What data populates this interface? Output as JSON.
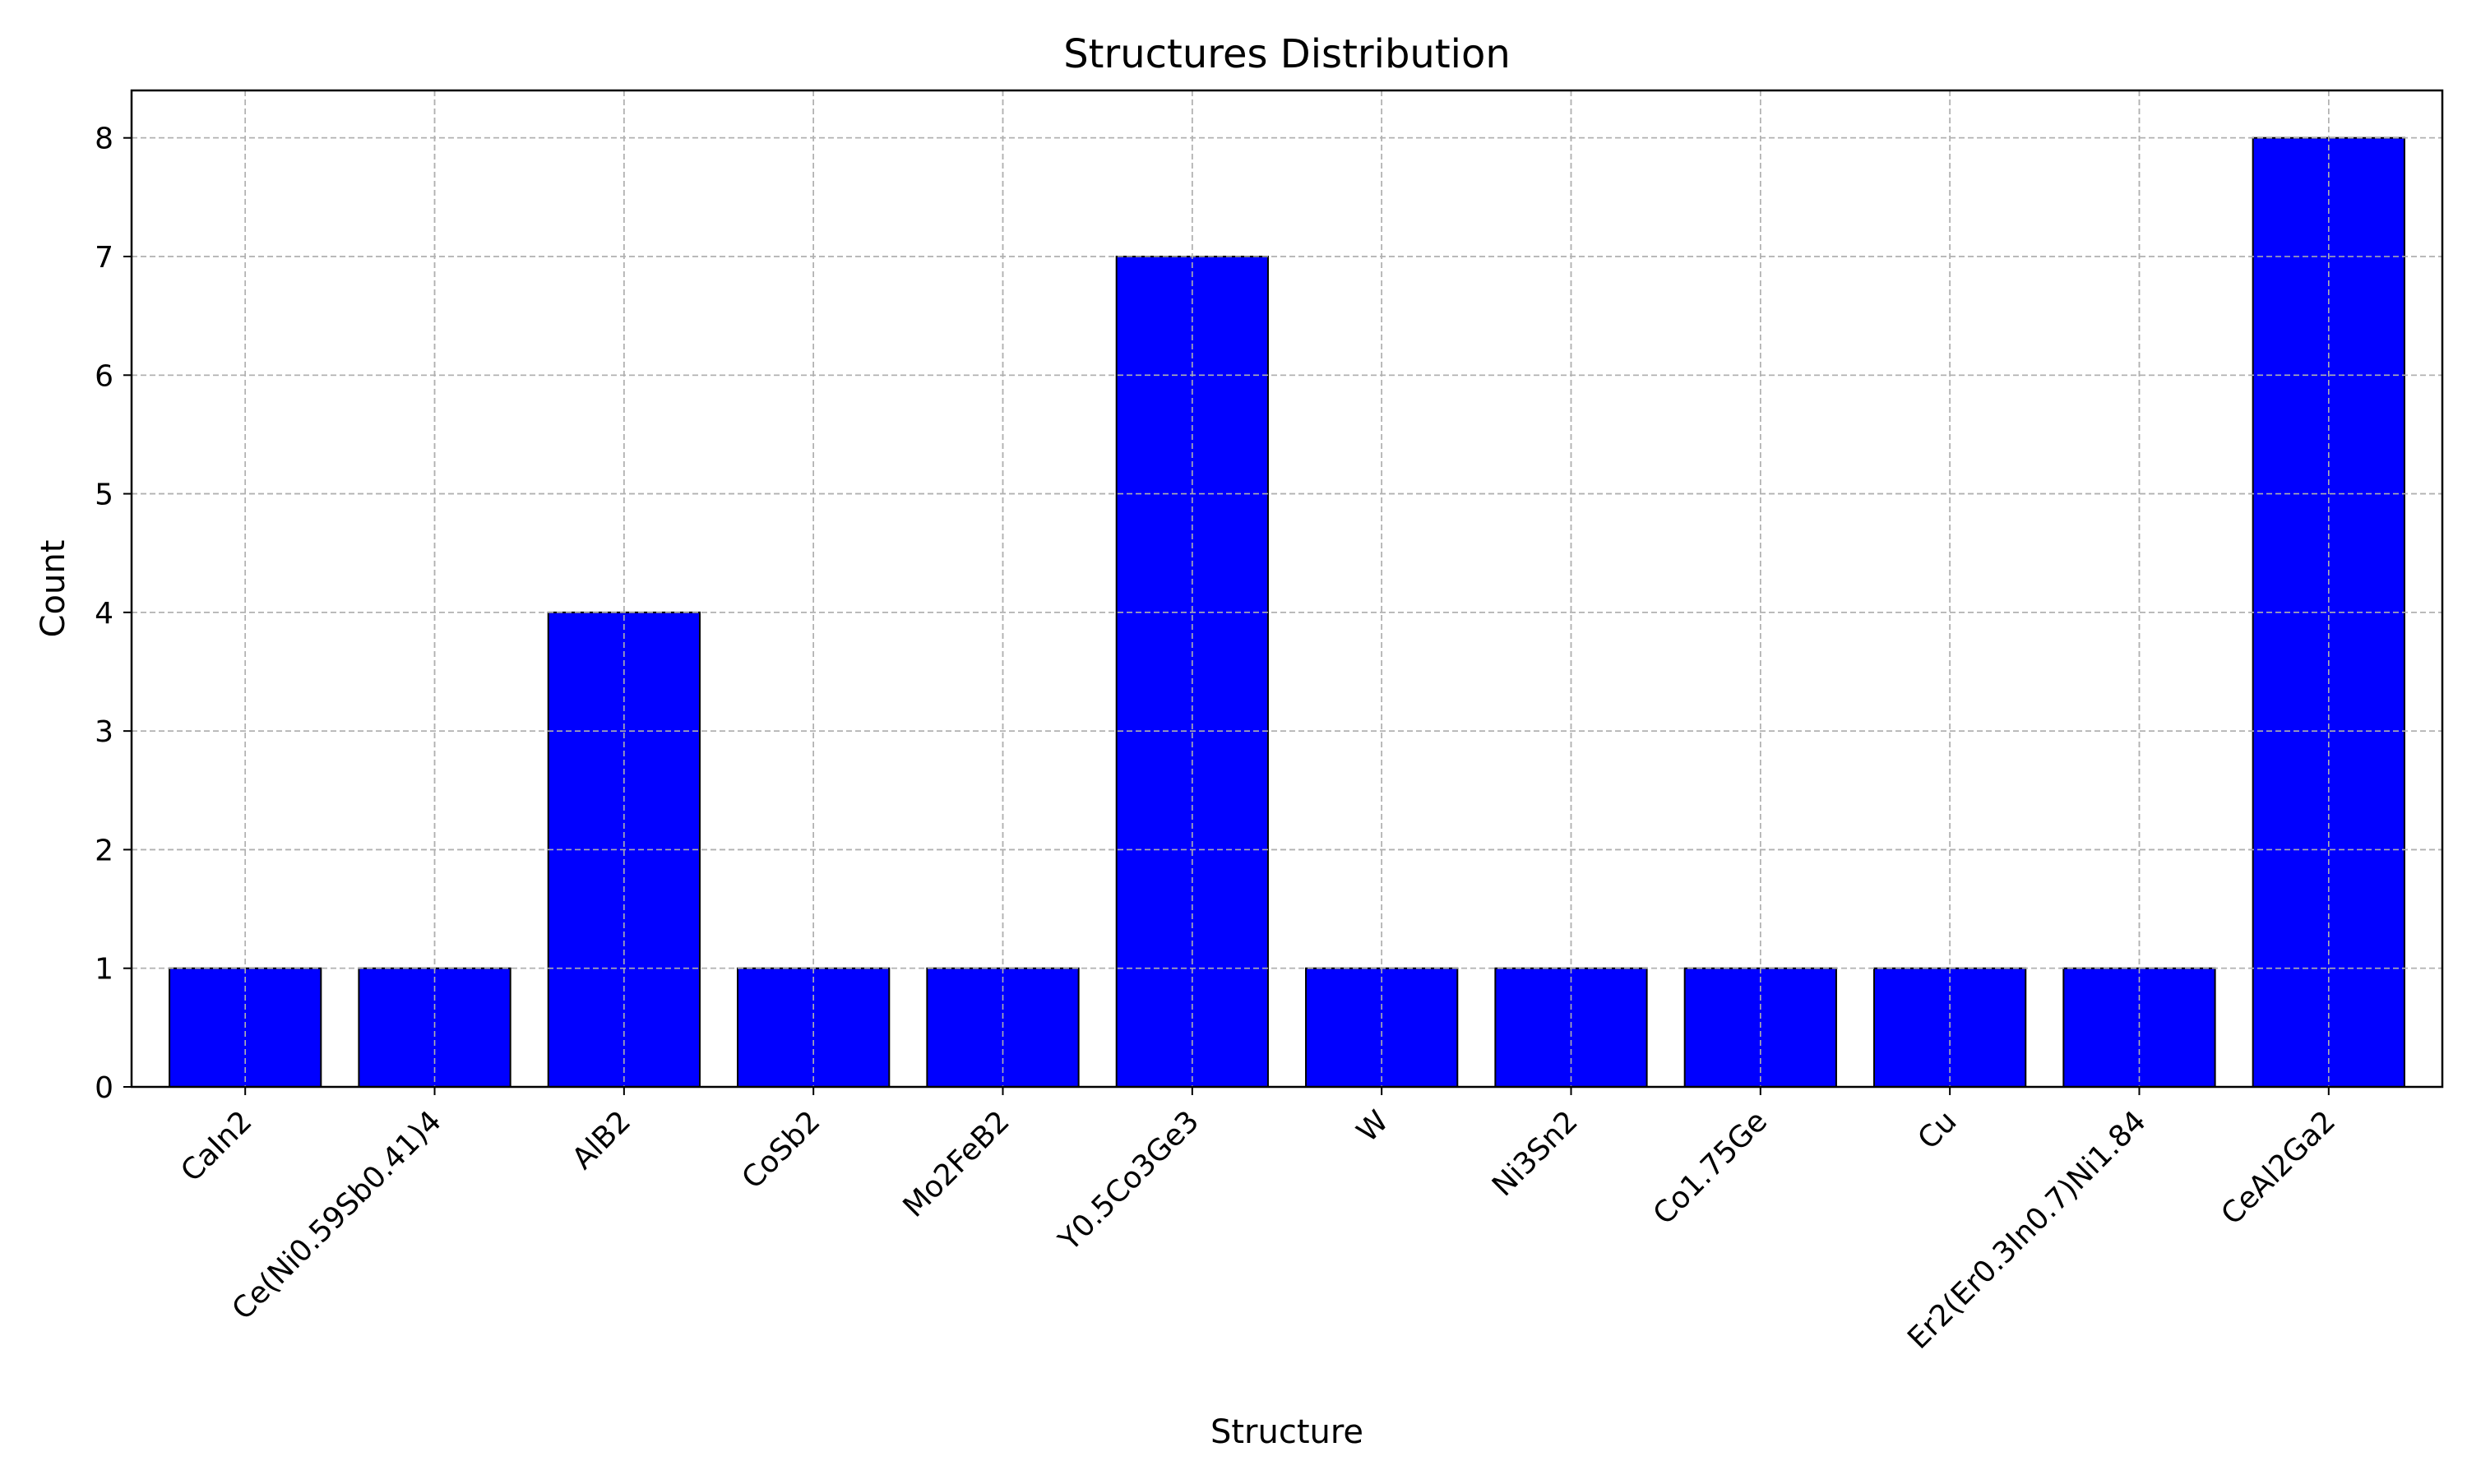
{
  "chart_data": {
    "type": "bar",
    "title": "Structures Distribution",
    "xlabel": "Structure",
    "ylabel": "Count",
    "categories": [
      "CaIn2",
      "Ce(Ni0.59Sb0.41)4",
      "AlB2",
      "CoSb2",
      "Mo2FeB2",
      "Y0.5Co3Ge3",
      "W",
      "Ni3Sn2",
      "Co1.75Ge",
      "Cu",
      "Er2(Er0.3In0.7)Ni1.84",
      "CeAl2Ga2"
    ],
    "values": [
      1,
      1,
      4,
      1,
      1,
      7,
      1,
      1,
      1,
      1,
      1,
      8
    ],
    "yticks": [
      "0",
      "1",
      "2",
      "3",
      "4",
      "5",
      "6",
      "7",
      "8"
    ],
    "ylim": [
      0,
      8.4
    ],
    "grid": true,
    "legend": "none",
    "colors": {
      "bar_fill": "#0000ff",
      "bar_edge": "#000000",
      "grid": "#b0b0b0"
    }
  }
}
